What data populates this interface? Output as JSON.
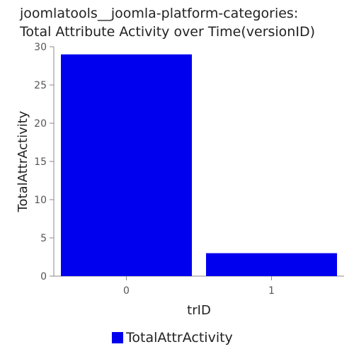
{
  "chart_data": {
    "type": "bar",
    "title_lines": [
      "joomlatools__joomla-platform-categories:",
      "Total Attribute Activity over Time(versionID)"
    ],
    "xlabel": "trID",
    "ylabel": "TotalAttrActivity",
    "categories": [
      "0",
      "1"
    ],
    "series": [
      {
        "name": "TotalAttrActivity",
        "values": [
          29,
          3
        ],
        "color": "#0000ee"
      }
    ],
    "ylim": [
      0,
      30
    ],
    "yticks": [
      0,
      5,
      10,
      15,
      20,
      25,
      30
    ],
    "grid": false,
    "legend_position": "bottom"
  }
}
